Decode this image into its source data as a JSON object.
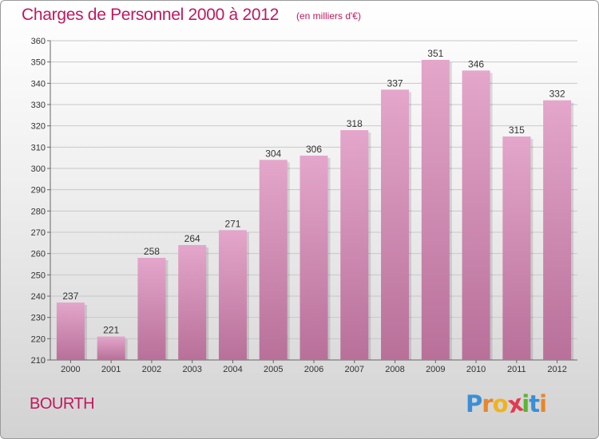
{
  "header": {
    "title": "Charges de Personnel 2000 à 2012",
    "subtitle": "(en milliers d'€)"
  },
  "footer": {
    "commune": "BOURTH",
    "logo_letters": [
      {
        "char": "P",
        "color": "#3a8fd6"
      },
      {
        "char": "r",
        "color": "#e8862a"
      },
      {
        "char": "o",
        "color": "#f0b21e"
      },
      {
        "char": "x",
        "color": "#e53950"
      },
      {
        "char": "i",
        "color": "#5cb531"
      },
      {
        "char": "t",
        "color": "#3a8fd6"
      },
      {
        "char": "i",
        "color": "#e8862a"
      }
    ]
  },
  "chart_data": {
    "type": "bar",
    "title": "Charges de Personnel 2000 à 2012",
    "subtitle": "(en milliers d'€)",
    "categories": [
      "2000",
      "2001",
      "2002",
      "2003",
      "2004",
      "2005",
      "2006",
      "2007",
      "2008",
      "2009",
      "2010",
      "2011",
      "2012"
    ],
    "values": [
      237,
      221,
      258,
      264,
      271,
      304,
      306,
      318,
      337,
      351,
      346,
      315,
      332
    ],
    "ylim": [
      210,
      360
    ],
    "yticks": [
      210,
      220,
      230,
      240,
      250,
      260,
      270,
      280,
      290,
      300,
      310,
      320,
      330,
      340,
      350,
      360
    ],
    "grid": true,
    "bar_color_top": "#e4a6cb",
    "bar_color_bottom": "#b87099"
  }
}
